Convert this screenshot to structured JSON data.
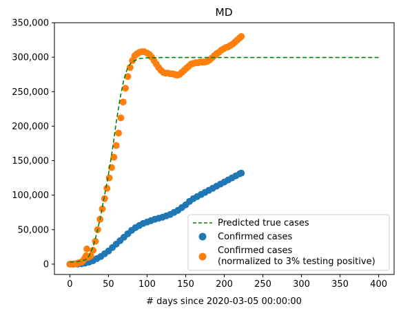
{
  "chart_data": {
    "type": "scatter",
    "title": "MD",
    "xlabel": "# days since 2020-03-05 00:00:00",
    "ylabel": "",
    "xlim": [
      -20,
      420
    ],
    "ylim": [
      -15000,
      350000
    ],
    "xticks": [
      0,
      50,
      100,
      150,
      200,
      250,
      300,
      350,
      400
    ],
    "yticks": [
      0,
      50000,
      100000,
      150000,
      200000,
      250000,
      300000,
      350000
    ],
    "ytick_labels": [
      "0",
      "50,000",
      "100,000",
      "150,000",
      "200,000",
      "250,000",
      "300,000",
      "350,000"
    ],
    "grid": false,
    "legend_position": "lower right",
    "series": [
      {
        "name": "Predicted true cases",
        "kind": "line",
        "style": "dashed",
        "color": "#008000",
        "points": [
          [
            0,
            3000
          ],
          [
            10,
            3500
          ],
          [
            20,
            6000
          ],
          [
            25,
            12000
          ],
          [
            30,
            25000
          ],
          [
            35,
            45000
          ],
          [
            40,
            70000
          ],
          [
            45,
            100000
          ],
          [
            50,
            130000
          ],
          [
            55,
            165000
          ],
          [
            60,
            205000
          ],
          [
            65,
            240000
          ],
          [
            70,
            268000
          ],
          [
            75,
            285000
          ],
          [
            80,
            293000
          ],
          [
            90,
            298000
          ],
          [
            100,
            299000
          ],
          [
            120,
            299500
          ],
          [
            150,
            299500
          ],
          [
            200,
            299500
          ],
          [
            300,
            299500
          ],
          [
            400,
            299500
          ]
        ]
      },
      {
        "name": "Confirmed cases",
        "kind": "scatter",
        "color": "#1f77b4",
        "points": [
          [
            0,
            0
          ],
          [
            5,
            0
          ],
          [
            10,
            100
          ],
          [
            15,
            500
          ],
          [
            20,
            1500
          ],
          [
            25,
            3000
          ],
          [
            30,
            5000
          ],
          [
            35,
            8000
          ],
          [
            40,
            11000
          ],
          [
            45,
            15000
          ],
          [
            50,
            19000
          ],
          [
            55,
            24000
          ],
          [
            60,
            29000
          ],
          [
            65,
            34000
          ],
          [
            70,
            39000
          ],
          [
            75,
            44000
          ],
          [
            80,
            49000
          ],
          [
            85,
            53000
          ],
          [
            90,
            56000
          ],
          [
            95,
            59000
          ],
          [
            100,
            61000
          ],
          [
            105,
            63000
          ],
          [
            110,
            65000
          ],
          [
            115,
            66500
          ],
          [
            120,
            68000
          ],
          [
            125,
            70000
          ],
          [
            130,
            72000
          ],
          [
            135,
            75000
          ],
          [
            140,
            78000
          ],
          [
            145,
            82000
          ],
          [
            150,
            86000
          ],
          [
            155,
            91000
          ],
          [
            160,
            95000
          ],
          [
            165,
            98000
          ],
          [
            170,
            101000
          ],
          [
            175,
            104000
          ],
          [
            180,
            107000
          ],
          [
            185,
            110000
          ],
          [
            190,
            113000
          ],
          [
            195,
            116000
          ],
          [
            200,
            119000
          ],
          [
            205,
            122000
          ],
          [
            210,
            125000
          ],
          [
            215,
            128000
          ],
          [
            220,
            131000
          ],
          [
            222,
            132000
          ]
        ]
      },
      {
        "name": "Confirmed cases\n(normalized to 3% testing positive)",
        "kind": "scatter",
        "color": "#ff7f0e",
        "points": [
          [
            0,
            0
          ],
          [
            3,
            0
          ],
          [
            6,
            500
          ],
          [
            9,
            1000
          ],
          [
            12,
            2000
          ],
          [
            15,
            3000
          ],
          [
            17,
            5000
          ],
          [
            19,
            8000
          ],
          [
            21,
            12000
          ],
          [
            22,
            22000
          ],
          [
            24,
            10000
          ],
          [
            27,
            12000
          ],
          [
            30,
            20000
          ],
          [
            33,
            33000
          ],
          [
            36,
            50000
          ],
          [
            39,
            65000
          ],
          [
            42,
            80000
          ],
          [
            45,
            95000
          ],
          [
            48,
            110000
          ],
          [
            51,
            125000
          ],
          [
            54,
            140000
          ],
          [
            57,
            155000
          ],
          [
            60,
            172000
          ],
          [
            63,
            190000
          ],
          [
            66,
            212000
          ],
          [
            69,
            235000
          ],
          [
            72,
            255000
          ],
          [
            75,
            272000
          ],
          [
            78,
            285000
          ],
          [
            81,
            295000
          ],
          [
            84,
            302000
          ],
          [
            87,
            305000
          ],
          [
            90,
            307000
          ],
          [
            93,
            308000
          ],
          [
            96,
            308000
          ],
          [
            100,
            306000
          ],
          [
            103,
            304000
          ],
          [
            106,
            300000
          ],
          [
            109,
            295000
          ],
          [
            112,
            290000
          ],
          [
            115,
            285000
          ],
          [
            118,
            281000
          ],
          [
            121,
            278000
          ],
          [
            124,
            277000
          ],
          [
            127,
            277000
          ],
          [
            130,
            276000
          ],
          [
            133,
            276000
          ],
          [
            136,
            275000
          ],
          [
            139,
            274000
          ],
          [
            142,
            275000
          ],
          [
            145,
            278000
          ],
          [
            148,
            281000
          ],
          [
            151,
            284000
          ],
          [
            154,
            287000
          ],
          [
            157,
            290000
          ],
          [
            160,
            291000
          ],
          [
            163,
            292000
          ],
          [
            166,
            292000
          ],
          [
            169,
            293000
          ],
          [
            172,
            293000
          ],
          [
            175,
            293000
          ],
          [
            178,
            294000
          ],
          [
            181,
            296000
          ],
          [
            184,
            299000
          ],
          [
            187,
            302000
          ],
          [
            190,
            305000
          ],
          [
            193,
            307000
          ],
          [
            196,
            310000
          ],
          [
            199,
            312000
          ],
          [
            202,
            314000
          ],
          [
            205,
            315000
          ],
          [
            208,
            317000
          ],
          [
            211,
            319000
          ],
          [
            214,
            322000
          ],
          [
            217,
            325000
          ],
          [
            220,
            328000
          ],
          [
            222,
            330000
          ]
        ]
      }
    ]
  }
}
